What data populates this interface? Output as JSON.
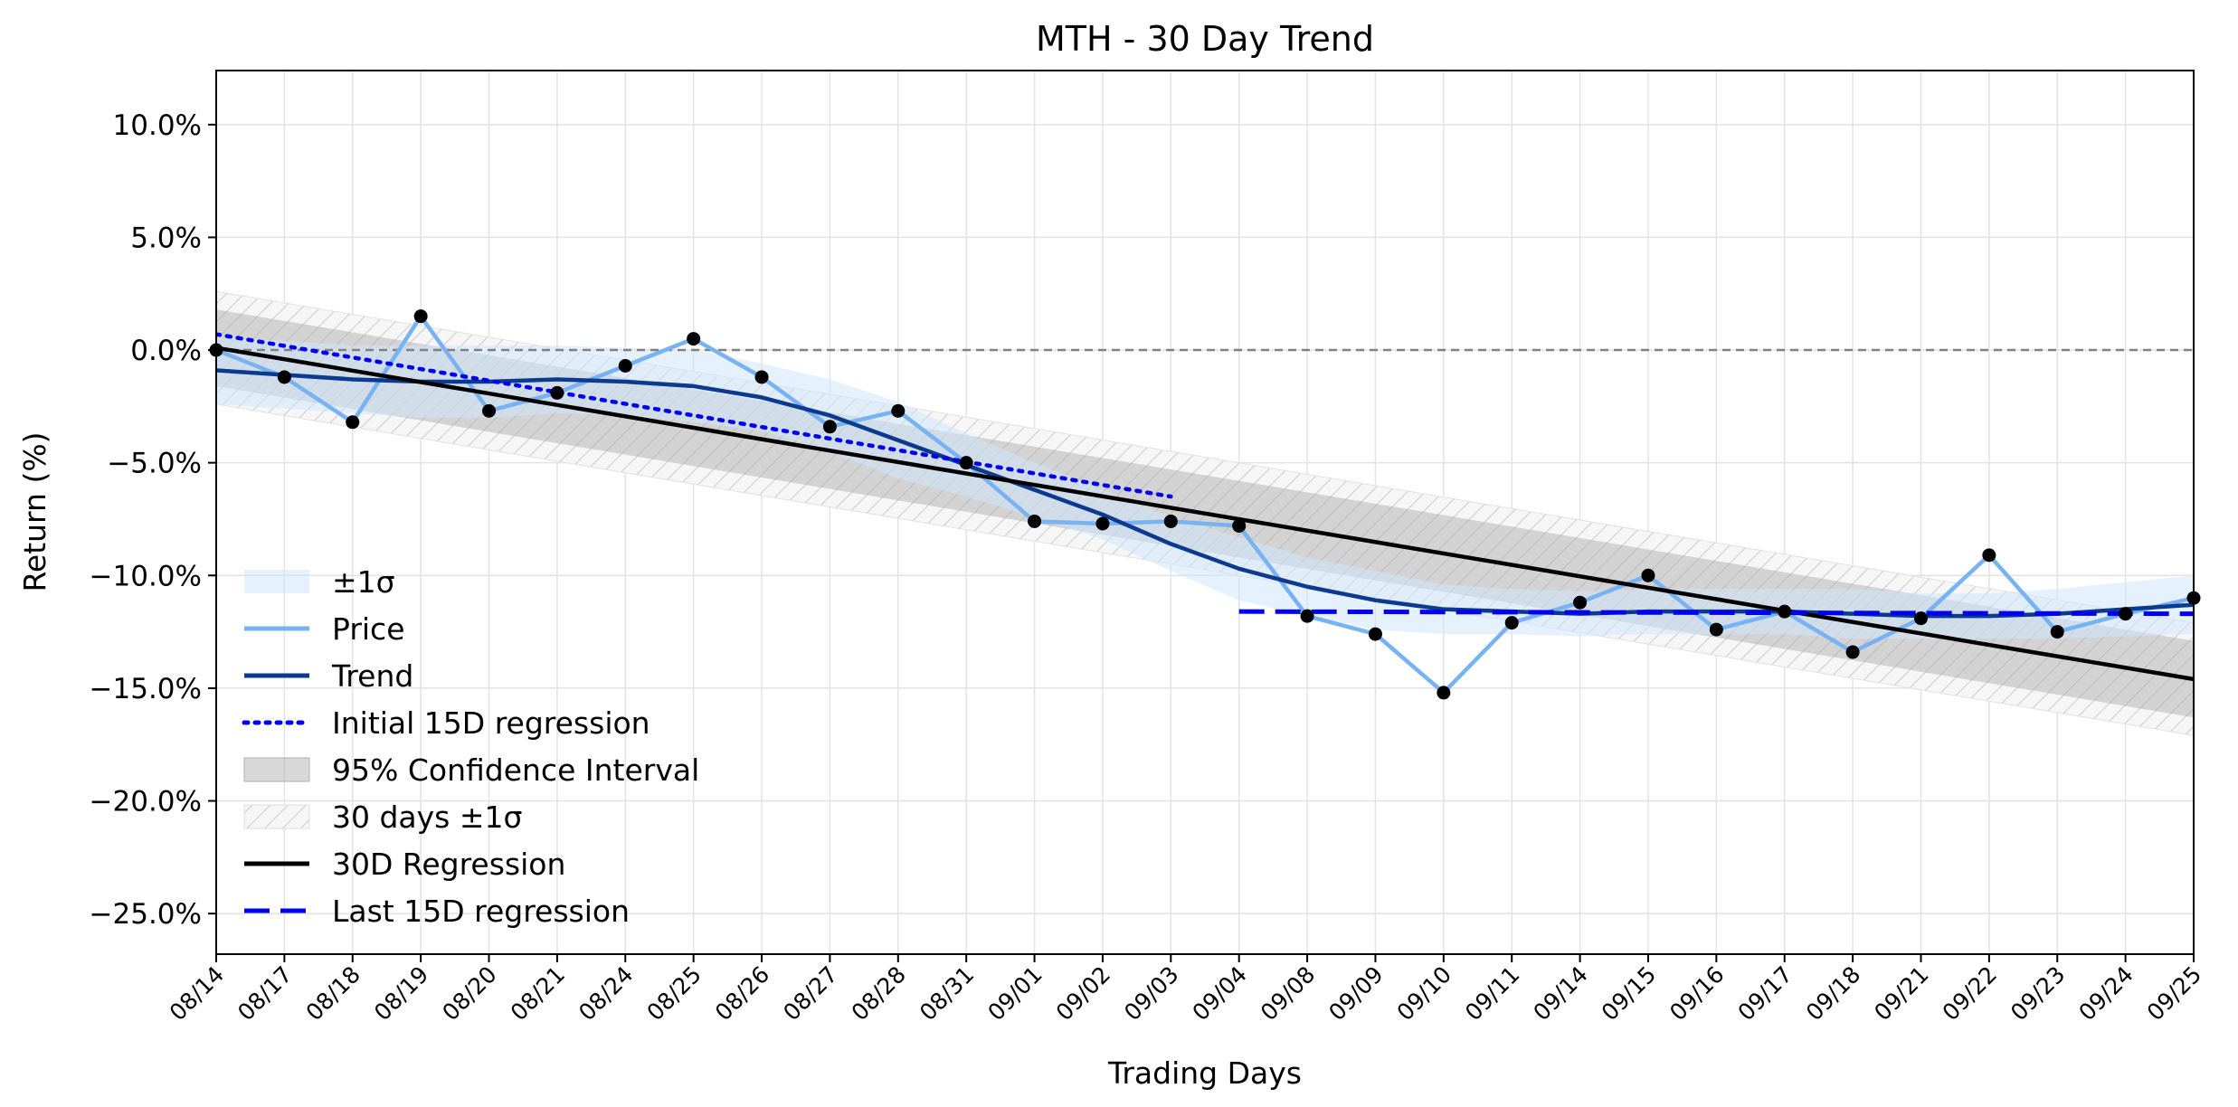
{
  "chart_data": {
    "type": "line",
    "title": "MTH - 30 Day Trend",
    "xlabel": "Trading Days",
    "ylabel": "Return (%)",
    "ylim": [
      -26.8,
      12.4
    ],
    "grid": true,
    "legend_position": "lower-left",
    "y_ticks": [
      10,
      5,
      0,
      -5,
      -10,
      -15,
      -20,
      -25
    ],
    "y_tick_labels": [
      "10.0%",
      "5.0%",
      "0.0%",
      "−5.0%",
      "−10.0%",
      "−15.0%",
      "−20.0%",
      "−25.0%"
    ],
    "categories": [
      "08/14",
      "08/17",
      "08/18",
      "08/19",
      "08/20",
      "08/21",
      "08/24",
      "08/25",
      "08/26",
      "08/27",
      "08/28",
      "08/31",
      "09/01",
      "09/02",
      "09/03",
      "09/04",
      "09/08",
      "09/09",
      "09/10",
      "09/11",
      "09/14",
      "09/15",
      "09/16",
      "09/17",
      "09/18",
      "09/21",
      "09/22",
      "09/23",
      "09/24",
      "09/25"
    ],
    "series": [
      {
        "name": "Price",
        "color": "#77b2f2",
        "values": [
          0.0,
          -1.2,
          -3.2,
          1.5,
          -2.7,
          -1.9,
          -0.7,
          0.5,
          -1.2,
          -3.4,
          -2.7,
          -5.0,
          -7.6,
          -7.7,
          -7.6,
          -7.8,
          -11.8,
          -12.6,
          -15.2,
          -12.1,
          -11.2,
          -10.0,
          -12.4,
          -11.6,
          -13.4,
          -11.9,
          -9.1,
          -12.5,
          -11.7,
          -11.0
        ],
        "markers": true
      },
      {
        "name": "Trend",
        "color": "#0b3a8f",
        "values": [
          -0.9,
          -1.1,
          -1.3,
          -1.4,
          -1.4,
          -1.3,
          -1.4,
          -1.6,
          -2.1,
          -2.9,
          -4.0,
          -5.1,
          -6.2,
          -7.3,
          -8.6,
          -9.7,
          -10.5,
          -11.1,
          -11.5,
          -11.6,
          -11.7,
          -11.6,
          -11.6,
          -11.6,
          -11.7,
          -11.8,
          -11.8,
          -11.7,
          -11.5,
          -11.3
        ]
      },
      {
        "name": "Initial 15D regression",
        "color": "#0000ee",
        "x_range": [
          0,
          14
        ],
        "endpoints": [
          0.7,
          -6.5
        ]
      },
      {
        "name": "30D Regression",
        "color": "#000000",
        "x_range": [
          0,
          29
        ],
        "endpoints": [
          0.1,
          -14.6
        ]
      },
      {
        "name": "Last 15D regression",
        "color": "#0000ee",
        "x_range": [
          15,
          29
        ],
        "endpoints": [
          -11.6,
          -11.7
        ]
      }
    ],
    "bands": [
      {
        "name": "±1σ",
        "color": "#cfe6fb",
        "upper": [
          0.6,
          0.4,
          0.2,
          0.2,
          0.2,
          0.2,
          0.1,
          0.0,
          -0.6,
          -1.3,
          -2.3,
          -3.7,
          -5.0,
          -6.2,
          -7.4,
          -8.3,
          -9.2,
          -9.8,
          -10.4,
          -10.6,
          -10.7,
          -10.6,
          -10.6,
          -10.6,
          -10.6,
          -10.8,
          -10.8,
          -10.6,
          -10.3,
          -10.0
        ],
        "lower": [
          -2.4,
          -2.6,
          -2.8,
          -3.0,
          -3.0,
          -2.8,
          -2.9,
          -3.2,
          -3.6,
          -4.5,
          -5.7,
          -6.5,
          -7.4,
          -8.4,
          -9.8,
          -11.1,
          -11.8,
          -12.4,
          -12.6,
          -12.6,
          -12.7,
          -12.6,
          -12.6,
          -12.6,
          -12.8,
          -12.8,
          -12.8,
          -12.8,
          -12.7,
          -12.6
        ]
      },
      {
        "name": "95% Confidence Interval",
        "color": "#a8a8a8",
        "x_range": [
          0,
          29
        ],
        "upper_endpoints": [
          1.8,
          -12.9
        ],
        "lower_endpoints": [
          -1.6,
          -16.3
        ]
      },
      {
        "name": "30 days ±1σ",
        "color": "#bdbdbd",
        "hatched": true,
        "x_range": [
          0,
          29
        ],
        "upper_endpoints": [
          2.6,
          -12.1
        ],
        "lower_endpoints": [
          -2.4,
          -17.1
        ]
      }
    ],
    "reference_line": {
      "y": 0,
      "style": "dashed",
      "color": "#808080"
    }
  }
}
